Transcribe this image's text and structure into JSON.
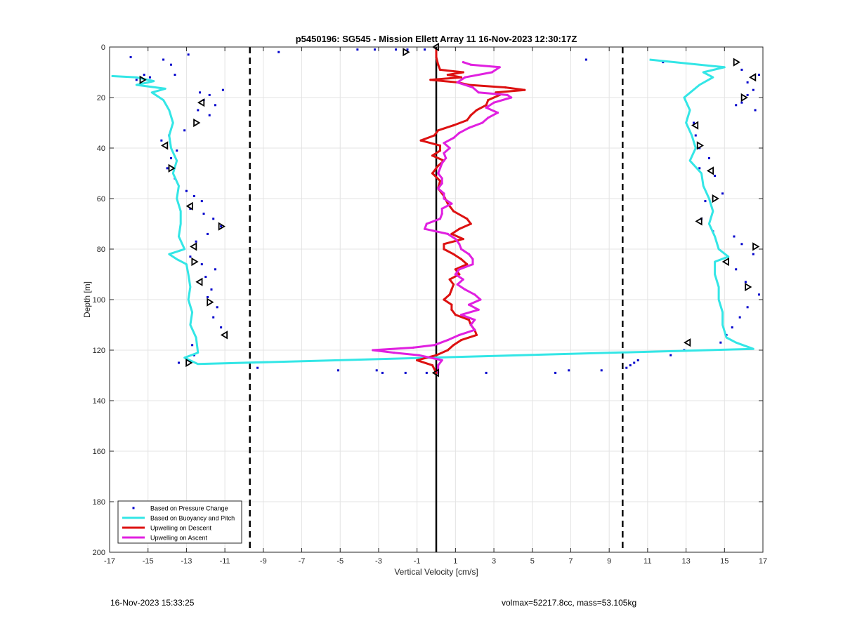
{
  "footer": {
    "timestamp": "16-Nov-2023 15:33:25",
    "info": "volmax=52217.8cc, mass=53.105kg"
  },
  "chart_data": {
    "type": "scatter",
    "title": "p5450196: SG545 - Mission Ellett Array 11 16-Nov-2023 12:30:17Z",
    "xlabel": "Vertical Velocity [cm/s]",
    "ylabel": "Depth [m]",
    "xlim": [
      -17,
      17
    ],
    "ylim": [
      0,
      200
    ],
    "y_reversed": true,
    "grid": true,
    "x_ticks": [
      -17,
      -15,
      -13,
      -11,
      -9,
      -7,
      -5,
      -3,
      -1,
      1,
      3,
      5,
      7,
      9,
      11,
      13,
      15,
      17
    ],
    "y_ticks": [
      0,
      20,
      40,
      60,
      80,
      100,
      120,
      140,
      160,
      180,
      200
    ],
    "legend_position": "bottom-left",
    "vertical_lines": [
      {
        "x": -9.7,
        "style": "dashed"
      },
      {
        "x": 9.7,
        "style": "dashed"
      },
      {
        "x": 0,
        "style": "solid"
      }
    ],
    "series": [
      {
        "name": "Based on Pressure Change",
        "kind": "points",
        "color": "#0000cc",
        "points": [
          [
            -15.9,
            4
          ],
          [
            -12.9,
            3
          ],
          [
            -14.2,
            5
          ],
          [
            -13.8,
            7
          ],
          [
            -15.2,
            11
          ],
          [
            -14.9,
            12
          ],
          [
            -13.6,
            11
          ],
          [
            -15.6,
            13
          ],
          [
            -12.3,
            18
          ],
          [
            -11.8,
            19
          ],
          [
            -11.1,
            17
          ],
          [
            -12.1,
            21
          ],
          [
            -11.5,
            23
          ],
          [
            -12.4,
            25
          ],
          [
            -11.8,
            27
          ],
          [
            -13.1,
            33
          ],
          [
            -13.9,
            35
          ],
          [
            -14.3,
            37
          ],
          [
            -13.5,
            41
          ],
          [
            -13.8,
            44
          ],
          [
            -14.0,
            48
          ],
          [
            -13.6,
            52
          ],
          [
            -13.0,
            57
          ],
          [
            -12.6,
            59
          ],
          [
            -12.2,
            61
          ],
          [
            -12.8,
            64
          ],
          [
            -12.1,
            66
          ],
          [
            -11.6,
            68
          ],
          [
            -11.2,
            71
          ],
          [
            -11.9,
            74
          ],
          [
            -12.5,
            77
          ],
          [
            -12.8,
            83
          ],
          [
            -12.2,
            86
          ],
          [
            -11.5,
            88
          ],
          [
            -12.0,
            91
          ],
          [
            -11.7,
            96
          ],
          [
            -11.9,
            99
          ],
          [
            -11.4,
            103
          ],
          [
            -11.6,
            107
          ],
          [
            -11.2,
            111
          ],
          [
            -12.7,
            118
          ],
          [
            -12.6,
            122
          ],
          [
            -12.9,
            124
          ],
          [
            -13.4,
            125
          ],
          [
            -8.2,
            2
          ],
          [
            -4.1,
            1
          ],
          [
            -3.2,
            1
          ],
          [
            -2.1,
            1
          ],
          [
            -1.5,
            1
          ],
          [
            -0.6,
            1
          ],
          [
            7.8,
            5
          ],
          [
            -5.1,
            128
          ],
          [
            -3.1,
            128
          ],
          [
            -2.8,
            129
          ],
          [
            -1.6,
            129
          ],
          [
            -0.5,
            129
          ],
          [
            2.6,
            129
          ],
          [
            6.2,
            129
          ],
          [
            6.9,
            128
          ],
          [
            8.6,
            128
          ],
          [
            -9.3,
            127
          ],
          [
            10.3,
            125
          ],
          [
            10.1,
            126
          ],
          [
            9.9,
            127
          ],
          [
            10.5,
            124
          ],
          [
            12.9,
            120
          ],
          [
            12.2,
            122
          ],
          [
            11.8,
            6
          ],
          [
            15.9,
            9
          ],
          [
            16.8,
            11
          ],
          [
            16.2,
            14
          ],
          [
            16.5,
            17
          ],
          [
            16.2,
            19
          ],
          [
            15.9,
            22
          ],
          [
            16.6,
            25
          ],
          [
            15.6,
            23
          ],
          [
            13.4,
            30
          ],
          [
            13.5,
            35
          ],
          [
            13.7,
            40
          ],
          [
            14.2,
            44
          ],
          [
            13.7,
            48
          ],
          [
            14.5,
            51
          ],
          [
            14.9,
            58
          ],
          [
            14.0,
            61
          ],
          [
            13.8,
            68
          ],
          [
            14.4,
            73
          ],
          [
            15.5,
            75
          ],
          [
            15.9,
            78
          ],
          [
            16.5,
            82
          ],
          [
            15.6,
            88
          ],
          [
            16.1,
            93
          ],
          [
            16.8,
            98
          ],
          [
            16.2,
            103
          ],
          [
            15.8,
            107
          ],
          [
            15.4,
            111
          ],
          [
            15.1,
            114
          ],
          [
            14.8,
            117
          ]
        ]
      },
      {
        "name": "Based on Buoyancy and Pitch",
        "kind": "line",
        "color": "#33e6e6",
        "points": [
          [
            -16.9,
            11.5
          ],
          [
            -15.6,
            12
          ],
          [
            -14.7,
            13.5
          ],
          [
            -15.6,
            15
          ],
          [
            -14.1,
            16.5
          ],
          [
            -14.8,
            18
          ],
          [
            -14.2,
            21
          ],
          [
            -13.9,
            25
          ],
          [
            -13.7,
            30
          ],
          [
            -13.9,
            35
          ],
          [
            -13.8,
            40
          ],
          [
            -13.5,
            45
          ],
          [
            -13.7,
            50
          ],
          [
            -13.4,
            55
          ],
          [
            -13.5,
            60
          ],
          [
            -13.3,
            65
          ],
          [
            -13.3,
            70
          ],
          [
            -13.4,
            75
          ],
          [
            -13.1,
            80
          ],
          [
            -13.9,
            82
          ],
          [
            -13.5,
            84
          ],
          [
            -13.0,
            86
          ],
          [
            -12.9,
            90
          ],
          [
            -12.8,
            95
          ],
          [
            -12.9,
            100
          ],
          [
            -12.7,
            105
          ],
          [
            -12.8,
            110
          ],
          [
            -12.5,
            115
          ],
          [
            -12.4,
            121
          ],
          [
            -13.1,
            123
          ],
          [
            -12.4,
            125.5
          ],
          [
            16.5,
            119.5
          ],
          [
            15.6,
            117
          ],
          [
            15.1,
            115
          ],
          [
            14.9,
            110
          ],
          [
            14.9,
            105
          ],
          [
            14.7,
            100
          ],
          [
            14.7,
            95
          ],
          [
            14.5,
            90
          ],
          [
            14.5,
            85
          ],
          [
            15.2,
            83
          ],
          [
            14.7,
            80
          ],
          [
            14.5,
            75
          ],
          [
            14.2,
            70
          ],
          [
            14.4,
            65
          ],
          [
            14.2,
            60
          ],
          [
            13.9,
            55
          ],
          [
            13.8,
            50
          ],
          [
            13.2,
            45
          ],
          [
            13.5,
            40
          ],
          [
            13.3,
            35
          ],
          [
            13.0,
            30
          ],
          [
            13.2,
            25
          ],
          [
            12.9,
            20
          ],
          [
            13.7,
            15
          ],
          [
            14.4,
            12
          ],
          [
            13.9,
            10
          ],
          [
            15.0,
            8
          ],
          [
            11.1,
            5
          ]
        ]
      },
      {
        "name": "Upwelling on Descent",
        "kind": "line",
        "color": "#dd1111",
        "points": [
          [
            0,
            1
          ],
          [
            0,
            4
          ],
          [
            0.1,
            7
          ],
          [
            0.2,
            9
          ],
          [
            1.4,
            10
          ],
          [
            0.6,
            11
          ],
          [
            1.3,
            12
          ],
          [
            -0.3,
            13
          ],
          [
            1.1,
            14
          ],
          [
            1.7,
            15
          ],
          [
            3.6,
            16
          ],
          [
            4.6,
            17
          ],
          [
            3.1,
            18
          ],
          [
            3.3,
            19
          ],
          [
            2.7,
            21
          ],
          [
            2.6,
            23
          ],
          [
            2.1,
            25
          ],
          [
            1.8,
            27
          ],
          [
            1.6,
            29
          ],
          [
            0.9,
            31
          ],
          [
            0.1,
            33
          ],
          [
            -0.1,
            35
          ],
          [
            -0.8,
            37
          ],
          [
            0.2,
            39
          ],
          [
            0.2,
            41
          ],
          [
            -0.2,
            43
          ],
          [
            0.4,
            45
          ],
          [
            0.1,
            47
          ],
          [
            -0.2,
            50
          ],
          [
            0.2,
            53
          ],
          [
            0.1,
            56
          ],
          [
            0.4,
            59
          ],
          [
            0.6,
            62
          ],
          [
            0.9,
            65
          ],
          [
            1.6,
            68
          ],
          [
            1.8,
            70
          ],
          [
            1.2,
            72
          ],
          [
            0.8,
            74
          ],
          [
            1.4,
            76
          ],
          [
            0.4,
            78
          ],
          [
            0.4,
            80
          ],
          [
            0.9,
            82
          ],
          [
            1.3,
            84
          ],
          [
            1.6,
            86
          ],
          [
            1.0,
            88
          ],
          [
            1.2,
            90
          ],
          [
            0.7,
            92
          ],
          [
            0.9,
            94
          ],
          [
            0.8,
            96
          ],
          [
            0.7,
            98
          ],
          [
            0.4,
            100
          ],
          [
            0.8,
            102
          ],
          [
            0.8,
            104
          ],
          [
            1.0,
            106
          ],
          [
            1.7,
            108
          ],
          [
            1.8,
            110
          ],
          [
            2.0,
            112
          ],
          [
            2.1,
            114
          ],
          [
            1.3,
            116
          ],
          [
            0.9,
            118
          ],
          [
            0.6,
            120
          ],
          [
            0,
            122
          ],
          [
            -1.0,
            124
          ],
          [
            -0.2,
            126
          ],
          [
            0,
            129
          ]
        ]
      },
      {
        "name": "Upwelling on Ascent",
        "kind": "line",
        "color": "#e020e0",
        "points": [
          [
            0.1,
            129
          ],
          [
            0.1,
            126
          ],
          [
            0.3,
            124
          ],
          [
            -0.9,
            122
          ],
          [
            -2.2,
            121
          ],
          [
            -3.3,
            120
          ],
          [
            -1.2,
            119
          ],
          [
            -0.1,
            118
          ],
          [
            0.6,
            116
          ],
          [
            1.2,
            114
          ],
          [
            2.0,
            112
          ],
          [
            1.8,
            110
          ],
          [
            2.0,
            108
          ],
          [
            1.3,
            106
          ],
          [
            2.2,
            104
          ],
          [
            1.7,
            102
          ],
          [
            2.3,
            100
          ],
          [
            2.0,
            98
          ],
          [
            1.5,
            96
          ],
          [
            1.1,
            94
          ],
          [
            1.4,
            92
          ],
          [
            1.0,
            90
          ],
          [
            1.2,
            88
          ],
          [
            1.9,
            86
          ],
          [
            1.9,
            84
          ],
          [
            1.7,
            82
          ],
          [
            1.3,
            80
          ],
          [
            1.2,
            78
          ],
          [
            1.0,
            76
          ],
          [
            0.6,
            74
          ],
          [
            -0.6,
            72
          ],
          [
            -0.5,
            70
          ],
          [
            0.2,
            68
          ],
          [
            0.3,
            66
          ],
          [
            0.3,
            64
          ],
          [
            0.8,
            62
          ],
          [
            0.4,
            60
          ],
          [
            0.4,
            58
          ],
          [
            0.1,
            56
          ],
          [
            0.3,
            54
          ],
          [
            0.3,
            52
          ],
          [
            0.1,
            50
          ],
          [
            0.2,
            48
          ],
          [
            0.3,
            46
          ],
          [
            0.5,
            44
          ],
          [
            0.4,
            42
          ],
          [
            0.7,
            40
          ],
          [
            0.4,
            38
          ],
          [
            0.9,
            36
          ],
          [
            1.2,
            34
          ],
          [
            1.7,
            32
          ],
          [
            2.4,
            30
          ],
          [
            2.7,
            28
          ],
          [
            3.2,
            26
          ],
          [
            2.6,
            24
          ],
          [
            3.0,
            22
          ],
          [
            3.9,
            20
          ],
          [
            3.7,
            19
          ],
          [
            2.2,
            18
          ],
          [
            1.9,
            16
          ],
          [
            1.1,
            14
          ],
          [
            1.5,
            12
          ],
          [
            2.9,
            10
          ],
          [
            3.3,
            8
          ],
          [
            1.8,
            7
          ],
          [
            1.4,
            6
          ]
        ]
      }
    ],
    "markers": {
      "kind": "open-triangles",
      "color": "#000000",
      "points": [
        [
          -15.3,
          13
        ],
        [
          -12.2,
          22
        ],
        [
          -12.5,
          30
        ],
        [
          -14.1,
          39
        ],
        [
          -13.8,
          48
        ],
        [
          -12.8,
          63
        ],
        [
          -11.2,
          71
        ],
        [
          -12.6,
          79
        ],
        [
          -12.6,
          85
        ],
        [
          -12.3,
          93
        ],
        [
          -11.8,
          101
        ],
        [
          -11.0,
          114
        ],
        [
          -12.9,
          125
        ],
        [
          0,
          0
        ],
        [
          -1.6,
          2
        ],
        [
          0,
          129
        ],
        [
          15.6,
          6
        ],
        [
          16.5,
          12
        ],
        [
          16.0,
          20
        ],
        [
          13.5,
          31
        ],
        [
          13.7,
          39
        ],
        [
          14.3,
          49
        ],
        [
          14.5,
          60
        ],
        [
          13.7,
          69
        ],
        [
          16.6,
          79
        ],
        [
          15.1,
          85
        ],
        [
          16.2,
          95
        ],
        [
          13.1,
          117
        ]
      ]
    }
  }
}
